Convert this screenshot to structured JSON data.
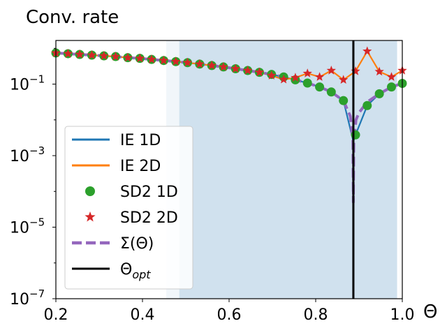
{
  "chart_data": {
    "type": "line",
    "title": "Conv. rate",
    "xlabel": "Θ",
    "ylabel": "",
    "xlim": [
      0.2,
      1.0
    ],
    "ylim_log10": [
      -7,
      0.22
    ],
    "y_scale": "log",
    "x_ticks": [
      0.2,
      0.4,
      0.6,
      0.8,
      1.0
    ],
    "x_tick_labels": [
      "0.2",
      "0.4",
      "0.6",
      "0.8",
      "1.0"
    ],
    "y_ticks_log10": [
      -1,
      -3,
      -5,
      -7
    ],
    "y_tick_bases": [
      "10",
      "10",
      "10",
      "10"
    ],
    "y_tick_exponents": [
      "−1",
      "−3",
      "−5",
      "−7"
    ],
    "shaded_regions": [
      {
        "x0": 0.455,
        "x1": 0.485,
        "color": "#f1f6fa"
      },
      {
        "x0": 0.485,
        "x1": 0.988,
        "color": "#d0e1ee"
      }
    ],
    "vertical_line": {
      "x": 0.887,
      "label_base": "Θ",
      "label_sub": "opt",
      "color": "#000000"
    },
    "legend_position": "lower-left",
    "series": [
      {
        "name": "IE 1D",
        "style": "line",
        "color": "#1f77b4",
        "x": [
          0.2,
          0.228,
          0.255,
          0.283,
          0.311,
          0.338,
          0.366,
          0.394,
          0.421,
          0.449,
          0.477,
          0.504,
          0.532,
          0.56,
          0.587,
          0.615,
          0.643,
          0.67,
          0.698,
          0.726,
          0.753,
          0.781,
          0.809,
          0.836,
          0.864,
          0.887,
          0.892,
          0.919,
          0.947,
          0.975,
          1.0
        ],
        "log10y": [
          -0.13,
          -0.15,
          -0.17,
          -0.19,
          -0.21,
          -0.23,
          -0.26,
          -0.28,
          -0.31,
          -0.34,
          -0.37,
          -0.4,
          -0.44,
          -0.48,
          -0.52,
          -0.57,
          -0.62,
          -0.67,
          -0.73,
          -0.8,
          -0.88,
          -0.97,
          -1.08,
          -1.22,
          -1.46,
          -2.6,
          -2.42,
          -1.6,
          -1.27,
          -1.08,
          -0.98
        ]
      },
      {
        "name": "IE 2D",
        "style": "line",
        "color": "#ff7f0e",
        "x": [
          0.2,
          0.228,
          0.255,
          0.283,
          0.311,
          0.338,
          0.366,
          0.394,
          0.421,
          0.449,
          0.477,
          0.504,
          0.532,
          0.56,
          0.587,
          0.615,
          0.643,
          0.67,
          0.698,
          0.726,
          0.753,
          0.781,
          0.809,
          0.836,
          0.864,
          0.892,
          0.919,
          0.947,
          0.975,
          1.0
        ],
        "log10y": [
          -0.13,
          -0.15,
          -0.17,
          -0.19,
          -0.21,
          -0.23,
          -0.26,
          -0.28,
          -0.31,
          -0.34,
          -0.37,
          -0.4,
          -0.44,
          -0.48,
          -0.52,
          -0.57,
          -0.62,
          -0.67,
          -0.76,
          -0.87,
          -0.82,
          -0.7,
          -0.8,
          -0.62,
          -0.88,
          -0.64,
          -0.08,
          -0.65,
          -0.8,
          -0.62
        ]
      },
      {
        "name": "SD2 1D",
        "style": "marker-circle",
        "color": "#2ca02c",
        "x": [
          0.2,
          0.228,
          0.255,
          0.283,
          0.311,
          0.338,
          0.366,
          0.394,
          0.421,
          0.449,
          0.477,
          0.504,
          0.532,
          0.56,
          0.587,
          0.615,
          0.643,
          0.67,
          0.698,
          0.726,
          0.753,
          0.781,
          0.809,
          0.836,
          0.864,
          0.892,
          0.919,
          0.947,
          0.975,
          1.0
        ],
        "log10y": [
          -0.13,
          -0.15,
          -0.17,
          -0.19,
          -0.21,
          -0.23,
          -0.26,
          -0.28,
          -0.31,
          -0.34,
          -0.37,
          -0.4,
          -0.44,
          -0.48,
          -0.52,
          -0.57,
          -0.62,
          -0.67,
          -0.73,
          -0.8,
          -0.88,
          -0.97,
          -1.08,
          -1.22,
          -1.46,
          -2.42,
          -1.6,
          -1.27,
          -1.08,
          -0.98
        ]
      },
      {
        "name": "SD2 2D",
        "style": "marker-star",
        "color": "#d62728",
        "x": [
          0.2,
          0.228,
          0.255,
          0.283,
          0.311,
          0.338,
          0.366,
          0.394,
          0.421,
          0.449,
          0.477,
          0.504,
          0.532,
          0.56,
          0.587,
          0.615,
          0.643,
          0.67,
          0.698,
          0.726,
          0.753,
          0.781,
          0.809,
          0.836,
          0.864,
          0.892,
          0.919,
          0.947,
          0.975,
          1.0
        ],
        "log10y": [
          -0.13,
          -0.15,
          -0.17,
          -0.19,
          -0.21,
          -0.23,
          -0.26,
          -0.28,
          -0.31,
          -0.34,
          -0.37,
          -0.4,
          -0.44,
          -0.48,
          -0.52,
          -0.57,
          -0.62,
          -0.67,
          -0.76,
          -0.87,
          -0.82,
          -0.7,
          -0.8,
          -0.62,
          -0.88,
          -0.64,
          -0.08,
          -0.65,
          -0.8,
          -0.62
        ]
      },
      {
        "name": "Σ(Θ)",
        "style": "dashed-line",
        "color": "#9467bd",
        "x": [
          0.2,
          0.228,
          0.255,
          0.283,
          0.311,
          0.338,
          0.366,
          0.394,
          0.421,
          0.449,
          0.477,
          0.504,
          0.532,
          0.56,
          0.587,
          0.615,
          0.643,
          0.67,
          0.698,
          0.726,
          0.753,
          0.781,
          0.809,
          0.836,
          0.864,
          0.88,
          0.886,
          0.887,
          0.888,
          0.893,
          0.9,
          0.919,
          0.947,
          0.975,
          1.0
        ],
        "log10y": [
          -0.13,
          -0.15,
          -0.17,
          -0.19,
          -0.21,
          -0.23,
          -0.26,
          -0.28,
          -0.31,
          -0.34,
          -0.37,
          -0.4,
          -0.44,
          -0.48,
          -0.52,
          -0.57,
          -0.62,
          -0.67,
          -0.73,
          -0.8,
          -0.88,
          -0.97,
          -1.08,
          -1.22,
          -1.46,
          -1.9,
          -2.6,
          -4.3,
          -2.6,
          -2.0,
          -1.8,
          -1.5,
          -1.27,
          -1.08,
          -0.98
        ]
      }
    ],
    "legend": [
      {
        "label": "IE 1D",
        "style": "line",
        "color": "#1f77b4"
      },
      {
        "label": "IE 2D",
        "style": "line",
        "color": "#ff7f0e"
      },
      {
        "label": "SD2 1D",
        "style": "marker-circle",
        "color": "#2ca02c"
      },
      {
        "label": "SD2 2D",
        "style": "marker-star",
        "color": "#d62728"
      },
      {
        "label": "Σ(Θ)",
        "style": "dashed-line",
        "color": "#9467bd"
      },
      {
        "label_base": "Θ",
        "label_sub": "opt",
        "style": "line",
        "color": "#000000"
      }
    ]
  }
}
